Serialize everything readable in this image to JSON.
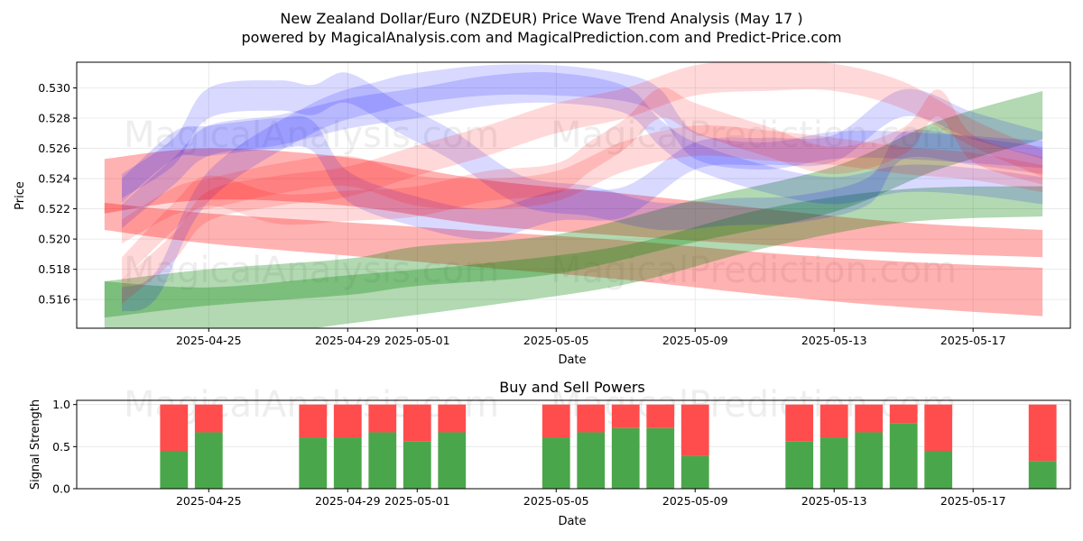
{
  "chart_data": [
    {
      "type": "area",
      "title": "New Zealand Dollar/Euro (NZDEUR) Price Wave Trend Analysis (May 17 )",
      "subtitle": "powered by MagicalAnalysis.com and MagicalPrediction.com and Predict-Price.com",
      "xlabel": "Date",
      "ylabel": "Price",
      "xlim": [
        -3.8,
        24.8
      ],
      "ylim": [
        0.5141,
        0.5317
      ],
      "x_ticks": [
        {
          "pos": 0,
          "label": "2025-04-25"
        },
        {
          "pos": 4,
          "label": "2025-04-29"
        },
        {
          "pos": 6,
          "label": "2025-05-01"
        },
        {
          "pos": 10,
          "label": "2025-05-05"
        },
        {
          "pos": 14,
          "label": "2025-05-09"
        },
        {
          "pos": 18,
          "label": "2025-05-13"
        },
        {
          "pos": 22,
          "label": "2025-05-17"
        }
      ],
      "y_ticks": [
        0.516,
        0.518,
        0.52,
        0.522,
        0.524,
        0.526,
        0.528,
        0.53
      ],
      "y_tick_labels": [
        "0.516",
        "0.518",
        "0.520",
        "0.522",
        "0.524",
        "0.526",
        "0.528",
        "0.530"
      ],
      "grid": true,
      "watermarks": [
        "MagicalAnalysis.com",
        "MagicalPrediction.com"
      ],
      "bands": [
        {
          "color": "#ff0000",
          "opacity": 0.3,
          "x": [
            -3,
            0,
            4,
            8,
            12,
            16,
            20,
            24
          ],
          "y": [
            0.5235,
            0.5243,
            0.5238,
            0.5224,
            0.5216,
            0.5208,
            0.5201,
            0.5197
          ],
          "half_width": [
            0.0018,
            0.0017,
            0.0016,
            0.0015,
            0.0014,
            0.0012,
            0.001,
            0.0009
          ]
        },
        {
          "color": "#ff0000",
          "opacity": 0.3,
          "x": [
            -3,
            0,
            4,
            8,
            12,
            16,
            20,
            24
          ],
          "y": [
            0.5215,
            0.5207,
            0.52,
            0.5193,
            0.5186,
            0.5177,
            0.517,
            0.5165
          ],
          "half_width": [
            0.0009,
            0.001,
            0.0011,
            0.0012,
            0.0013,
            0.0014,
            0.0015,
            0.0016
          ]
        },
        {
          "color": "#008000",
          "opacity": 0.3,
          "x": [
            -3,
            0,
            4,
            6,
            10,
            14,
            18,
            21,
            24
          ],
          "y": [
            0.516,
            0.5168,
            0.5175,
            0.5182,
            0.519,
            0.5212,
            0.5233,
            0.5262,
            0.5282
          ],
          "half_width": [
            0.0012,
            0.0012,
            0.0012,
            0.0013,
            0.0013,
            0.0014,
            0.0015,
            0.0016,
            0.0016
          ]
        },
        {
          "color": "#008000",
          "opacity": 0.3,
          "x": [
            -3,
            0,
            4,
            8,
            12,
            16,
            20,
            24
          ],
          "y": [
            0.5152,
            0.515,
            0.516,
            0.517,
            0.5183,
            0.5207,
            0.5222,
            0.5225
          ],
          "half_width": [
            0.002,
            0.0018,
            0.0016,
            0.0014,
            0.0013,
            0.0013,
            0.0011,
            0.001
          ]
        },
        {
          "color": "#0000ff",
          "opacity": 0.15,
          "x": [
            -2.5,
            -1,
            0,
            2,
            4,
            6,
            8,
            10,
            12,
            13,
            14,
            16,
            18,
            20,
            22,
            24
          ],
          "y": [
            0.5215,
            0.5245,
            0.5265,
            0.5272,
            0.5283,
            0.529,
            0.5298,
            0.53,
            0.5292,
            0.527,
            0.5255,
            0.524,
            0.5232,
            0.524,
            0.5238,
            0.5232
          ],
          "half_width": [
            0.0008,
            0.0009,
            0.001,
            0.001,
            0.001,
            0.001,
            0.001,
            0.001,
            0.0009,
            0.0009,
            0.0009,
            0.0009,
            0.0009,
            0.0009,
            0.0009,
            0.0009
          ]
        },
        {
          "color": "#0000ff",
          "opacity": 0.15,
          "x": [
            -2.5,
            -1.5,
            0,
            3,
            5,
            6,
            8,
            10,
            12,
            13,
            14,
            16,
            18,
            20,
            24
          ],
          "y": [
            0.516,
            0.517,
            0.5235,
            0.528,
            0.5295,
            0.53,
            0.5305,
            0.5305,
            0.53,
            0.529,
            0.5262,
            0.5255,
            0.5262,
            0.5262,
            0.5256
          ],
          "half_width": [
            0.0008,
            0.0009,
            0.001,
            0.001,
            0.001,
            0.001,
            0.001,
            0.001,
            0.0009,
            0.0009,
            0.0009,
            0.0009,
            0.0009,
            0.0009,
            0.0009
          ]
        },
        {
          "color": "#0000ff",
          "opacity": 0.15,
          "x": [
            -2.5,
            -1,
            0,
            2,
            3,
            4,
            5.5,
            7,
            9,
            11,
            13,
            15,
            17,
            19,
            20,
            22,
            24
          ],
          "y": [
            0.5235,
            0.5258,
            0.529,
            0.5295,
            0.5292,
            0.53,
            0.528,
            0.5262,
            0.5232,
            0.5225,
            0.5215,
            0.5218,
            0.522,
            0.5232,
            0.5262,
            0.5258,
            0.5252
          ],
          "half_width": [
            0.0008,
            0.0009,
            0.001,
            0.001,
            0.001,
            0.001,
            0.001,
            0.001,
            0.001,
            0.001,
            0.0009,
            0.0009,
            0.0009,
            0.0009,
            0.0009,
            0.0009,
            0.0009
          ]
        },
        {
          "color": "#0000ff",
          "opacity": 0.15,
          "x": [
            -2.5,
            -1,
            0,
            2,
            3,
            4,
            6,
            8,
            10,
            12,
            14,
            16,
            18,
            20,
            22,
            24
          ],
          "y": [
            0.5232,
            0.5262,
            0.5265,
            0.527,
            0.5268,
            0.5235,
            0.5218,
            0.521,
            0.5222,
            0.5225,
            0.5255,
            0.5258,
            0.526,
            0.529,
            0.5275,
            0.5262
          ],
          "half_width": [
            0.0008,
            0.0009,
            0.001,
            0.001,
            0.001,
            0.001,
            0.001,
            0.001,
            0.001,
            0.001,
            0.0009,
            0.0009,
            0.0009,
            0.0009,
            0.0009,
            0.0009
          ]
        },
        {
          "color": "#ff0000",
          "opacity": 0.15,
          "x": [
            -2.5,
            -1,
            0,
            2,
            4,
            6,
            8,
            10,
            12,
            14,
            16,
            18,
            20,
            22,
            24
          ],
          "y": [
            0.5165,
            0.5195,
            0.5222,
            0.5232,
            0.5238,
            0.5252,
            0.5265,
            0.528,
            0.529,
            0.5305,
            0.5308,
            0.5307,
            0.5295,
            0.527,
            0.525
          ],
          "half_width": [
            0.0008,
            0.0009,
            0.001,
            0.001,
            0.001,
            0.001,
            0.001,
            0.001,
            0.001,
            0.001,
            0.001,
            0.0009,
            0.0009,
            0.0009,
            0.0009
          ]
        },
        {
          "color": "#ff0000",
          "opacity": 0.15,
          "x": [
            -2.5,
            -1,
            0,
            2,
            4,
            6,
            8,
            10,
            11,
            12,
            13,
            14,
            16,
            18,
            20,
            21,
            22,
            24
          ],
          "y": [
            0.518,
            0.5215,
            0.5232,
            0.522,
            0.5222,
            0.5225,
            0.5235,
            0.524,
            0.5255,
            0.527,
            0.529,
            0.528,
            0.5265,
            0.5252,
            0.5265,
            0.529,
            0.526,
            0.5245
          ],
          "half_width": [
            0.0008,
            0.0009,
            0.001,
            0.001,
            0.001,
            0.001,
            0.001,
            0.001,
            0.001,
            0.001,
            0.001,
            0.001,
            0.001,
            0.0009,
            0.0009,
            0.0009,
            0.0009,
            0.0009
          ]
        },
        {
          "color": "#ff0000",
          "opacity": 0.15,
          "x": [
            -2.5,
            -1,
            0,
            2,
            4,
            6,
            8,
            10,
            12,
            14,
            16,
            18,
            20,
            22,
            24
          ],
          "y": [
            0.5205,
            0.5225,
            0.523,
            0.524,
            0.5245,
            0.5232,
            0.523,
            0.5235,
            0.5255,
            0.5265,
            0.5262,
            0.5258,
            0.5252,
            0.5248,
            0.524
          ],
          "half_width": [
            0.0008,
            0.0009,
            0.001,
            0.001,
            0.001,
            0.001,
            0.001,
            0.001,
            0.001,
            0.001,
            0.001,
            0.0009,
            0.0009,
            0.0009,
            0.0009
          ]
        }
      ]
    },
    {
      "type": "bar",
      "title": "Buy and Sell Powers",
      "xlabel": "Date",
      "ylabel": "Signal Strength",
      "xlim": [
        -3.8,
        24.8
      ],
      "ylim": [
        0,
        1.05
      ],
      "x_ticks": [
        {
          "pos": 0,
          "label": "2025-04-25"
        },
        {
          "pos": 4,
          "label": "2025-04-29"
        },
        {
          "pos": 6,
          "label": "2025-05-01"
        },
        {
          "pos": 10,
          "label": "2025-05-05"
        },
        {
          "pos": 14,
          "label": "2025-05-09"
        },
        {
          "pos": 18,
          "label": "2025-05-13"
        },
        {
          "pos": 22,
          "label": "2025-05-17"
        }
      ],
      "y_ticks": [
        0,
        0.5,
        1.0
      ],
      "y_tick_labels": [
        "0.0",
        "0.5",
        "1.0"
      ],
      "grid": true,
      "watermarks": [
        "MagicalAnalysis.com",
        "MagicalPrediction.com"
      ],
      "buy_color": "#4aa64a",
      "sell_color": "#ff4d4d",
      "bars": [
        {
          "x": -1,
          "buy": 0.45
        },
        {
          "x": 0,
          "buy": 0.67
        },
        {
          "x": 3,
          "buy": 0.61
        },
        {
          "x": 4,
          "buy": 0.61
        },
        {
          "x": 5,
          "buy": 0.67
        },
        {
          "x": 6,
          "buy": 0.56
        },
        {
          "x": 7,
          "buy": 0.67
        },
        {
          "x": 10,
          "buy": 0.61
        },
        {
          "x": 11,
          "buy": 0.67
        },
        {
          "x": 12,
          "buy": 0.72
        },
        {
          "x": 13,
          "buy": 0.72
        },
        {
          "x": 14,
          "buy": 0.39
        },
        {
          "x": 17,
          "buy": 0.56
        },
        {
          "x": 18,
          "buy": 0.61
        },
        {
          "x": 19,
          "buy": 0.67
        },
        {
          "x": 20,
          "buy": 0.78
        },
        {
          "x": 21,
          "buy": 0.45
        },
        {
          "x": 24,
          "buy": 0.33
        }
      ]
    }
  ]
}
